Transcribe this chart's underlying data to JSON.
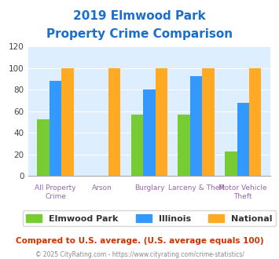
{
  "title_line1": "2019 Elmwood Park",
  "title_line2": "Property Crime Comparison",
  "title_color": "#1a6fcc",
  "categories": [
    "All Property Crime",
    "Arson",
    "Burglary",
    "Larceny & Theft",
    "Motor Vehicle Theft"
  ],
  "categories_line1": [
    "All Property Crime",
    "Arson",
    "Burglary",
    "Larceny & Theft",
    "Motor Vehicle Theft"
  ],
  "elmwood_park": [
    53,
    0,
    57,
    57,
    23
  ],
  "illinois": [
    88,
    0,
    80,
    93,
    68
  ],
  "national": [
    100,
    100,
    100,
    100,
    100
  ],
  "bar_colors": {
    "elmwood_park": "#77cc33",
    "illinois": "#3399ff",
    "national": "#ffaa22"
  },
  "ylim": [
    0,
    120
  ],
  "yticks": [
    0,
    20,
    40,
    60,
    80,
    100,
    120
  ],
  "background_color": "#ddeeff",
  "legend_labels": [
    "Elmwood Park",
    "Illinois",
    "National"
  ],
  "footnote1": "Compared to U.S. average. (U.S. average equals 100)",
  "footnote2": "© 2025 CityRating.com - https://www.cityrating.com/crime-statistics/",
  "footnote1_color": "#cc3300",
  "footnote2_color": "#888888",
  "xticklabel_color": "#9966aa"
}
